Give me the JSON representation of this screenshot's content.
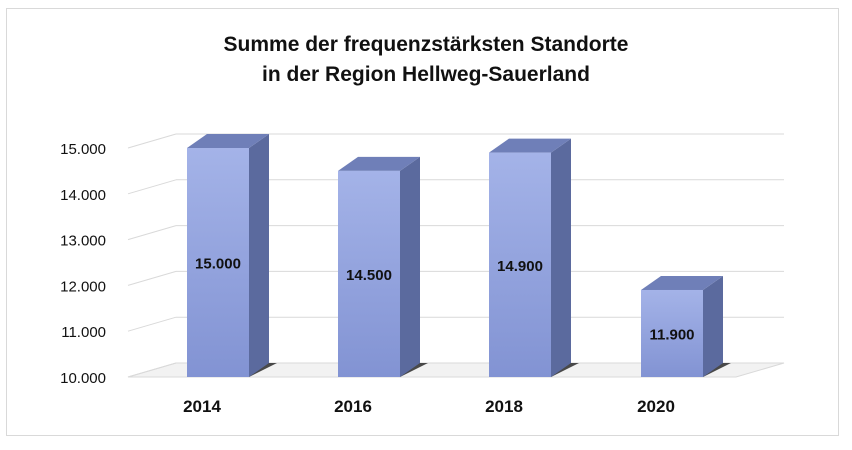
{
  "chart_data": {
    "type": "bar",
    "title_line1": "Summe der frequenzstärksten Standorte",
    "title_line2": "in der Region Hellweg-Sauerland",
    "categories": [
      "2014",
      "2016",
      "2018",
      "2020"
    ],
    "values": [
      15000,
      14500,
      14900,
      11900
    ],
    "value_labels": [
      "15.000",
      "14.500",
      "14.900",
      "11.900"
    ],
    "yticks": [
      10000,
      11000,
      12000,
      13000,
      14000,
      15000
    ],
    "ytick_labels": [
      "10.000",
      "11.000",
      "12.000",
      "13.000",
      "14.000",
      "15.000"
    ],
    "ylim": [
      10000,
      15000
    ],
    "grid": true,
    "bar_color": "#8e9fdc",
    "bar_side_color": "#5b6a9e",
    "bar_top_color": "#6f7fb8"
  }
}
